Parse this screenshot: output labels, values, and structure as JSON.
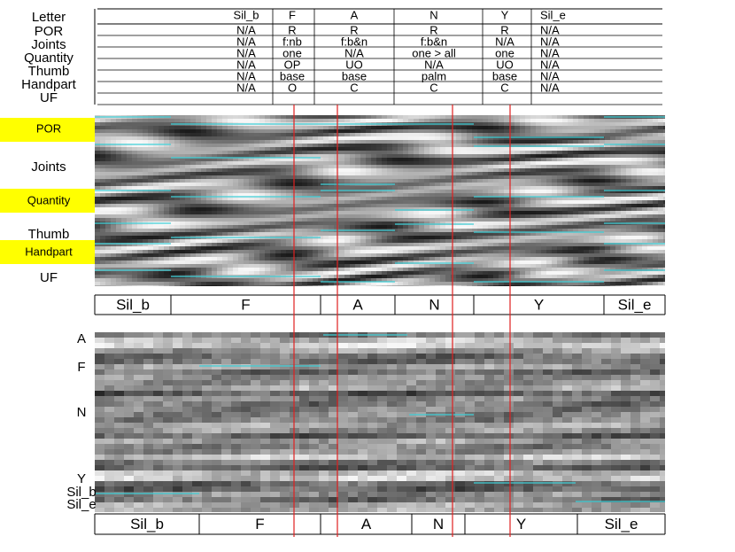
{
  "table": {
    "header": [
      "Letter",
      "Sil_b",
      "F",
      "A",
      "N",
      "Y",
      "Sil_e"
    ],
    "rows": [
      [
        "POR",
        "N/A",
        "R",
        "R",
        "R",
        "R",
        "N/A"
      ],
      [
        "Joints",
        "N/A",
        "f:nb",
        "f:b&n",
        "f:b&n",
        "N/A",
        "N/A"
      ],
      [
        "Quantity",
        "N/A",
        "one",
        "N/A",
        "one > all",
        "one",
        "N/A"
      ],
      [
        "Thumb",
        "N/A",
        "OP",
        "UO",
        "N/A",
        "UO",
        "N/A"
      ],
      [
        "Handpart",
        "N/A",
        "base",
        "base",
        "palm",
        "base",
        "N/A"
      ],
      [
        "UF",
        "N/A",
        "O",
        "C",
        "C",
        "C",
        "N/A"
      ]
    ]
  },
  "panel1": {
    "labels": [
      "POR",
      "Joints",
      "Quantity",
      "Thumb",
      "Handpart",
      "UF"
    ],
    "segments": [
      "Sil_b",
      "F",
      "A",
      "N",
      "Y",
      "Sil_e"
    ]
  },
  "panel2": {
    "labels": [
      "A",
      "F",
      "N",
      "Y",
      "Sil_b",
      "Sil_e"
    ],
    "segments": [
      "Sil_b",
      "F",
      "A",
      "N",
      "Y",
      "Sil_e"
    ]
  }
}
